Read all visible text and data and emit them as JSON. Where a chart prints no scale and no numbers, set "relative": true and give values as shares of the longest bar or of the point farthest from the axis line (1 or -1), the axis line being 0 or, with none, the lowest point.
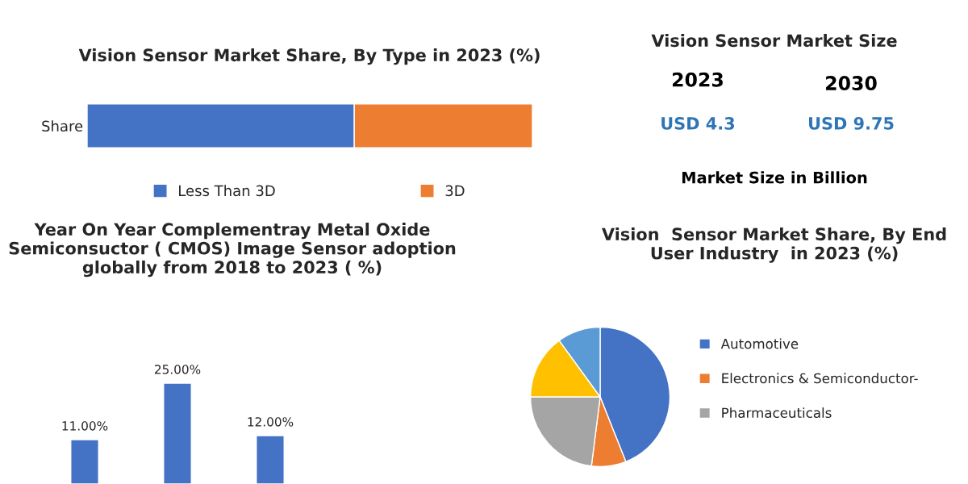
{
  "chart_data": [
    {
      "type": "bar",
      "title": "Vision Sensor Market Share, By Type in 2023 (%)",
      "orientation": "horizontal",
      "stacked": true,
      "relative": true,
      "categories": [
        "Share"
      ],
      "legend": "bottom",
      "series": [
        {
          "name": "Less Than 3D",
          "color": "#4472c4",
          "values": [
            0.6
          ]
        },
        {
          "name": "3D",
          "color": "#ed7d31",
          "values": [
            0.4
          ]
        }
      ]
    },
    {
      "type": "other",
      "title": "Vision Sensor Market Size",
      "annotations": [
        "2023",
        "2030",
        "USD 4.3",
        "USD 9.75",
        "Market Size in Billion"
      ]
    },
    {
      "type": "bar",
      "title": "Year On Year Complementray Metal Oxide Semiconsuctor ( CMOS) Image Sensor adoption globally from 2018 to 2023 ( %)",
      "categories": [
        null,
        null,
        null
      ],
      "values": [
        11,
        25,
        12
      ],
      "color": "#4472c4",
      "value_labels": [
        "11.00%",
        "25.00%",
        "12.00%"
      ]
    },
    {
      "type": "pie",
      "title": "Vision  Sensor Market Share, By End User Industry  in 2023 (%)",
      "categories": [
        "Automotive",
        "Electronics & Semiconductor-",
        "Pharmaceuticals",
        null,
        null
      ],
      "values": [
        44,
        8,
        23,
        15,
        10
      ],
      "colors": [
        "#4472c4",
        "#ed7d31",
        "#a5a5a5",
        "#ffc000",
        "#5b9bd5"
      ],
      "legend": "right"
    }
  ]
}
